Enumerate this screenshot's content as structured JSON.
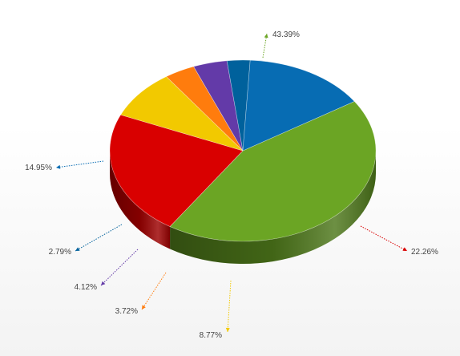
{
  "chart_data": {
    "type": "pie",
    "variant": "3d",
    "title": "",
    "slices": [
      {
        "value": 43.39,
        "label": "43.39%",
        "color": "#6ba524"
      },
      {
        "value": 22.26,
        "label": "22.26%",
        "color": "#d90000"
      },
      {
        "value": 8.77,
        "label": "8.77%",
        "color": "#f2c900"
      },
      {
        "value": 3.72,
        "label": "3.72%",
        "color": "#ff7c0d"
      },
      {
        "value": 4.12,
        "label": "4.12%",
        "color": "#633aa8"
      },
      {
        "value": 2.79,
        "label": "2.79%",
        "color": "#00619c"
      },
      {
        "value": 14.95,
        "label": "14.95%",
        "color": "#076cb3"
      }
    ],
    "labels_style": "dotted leader lines with arrows, outside the pie"
  }
}
